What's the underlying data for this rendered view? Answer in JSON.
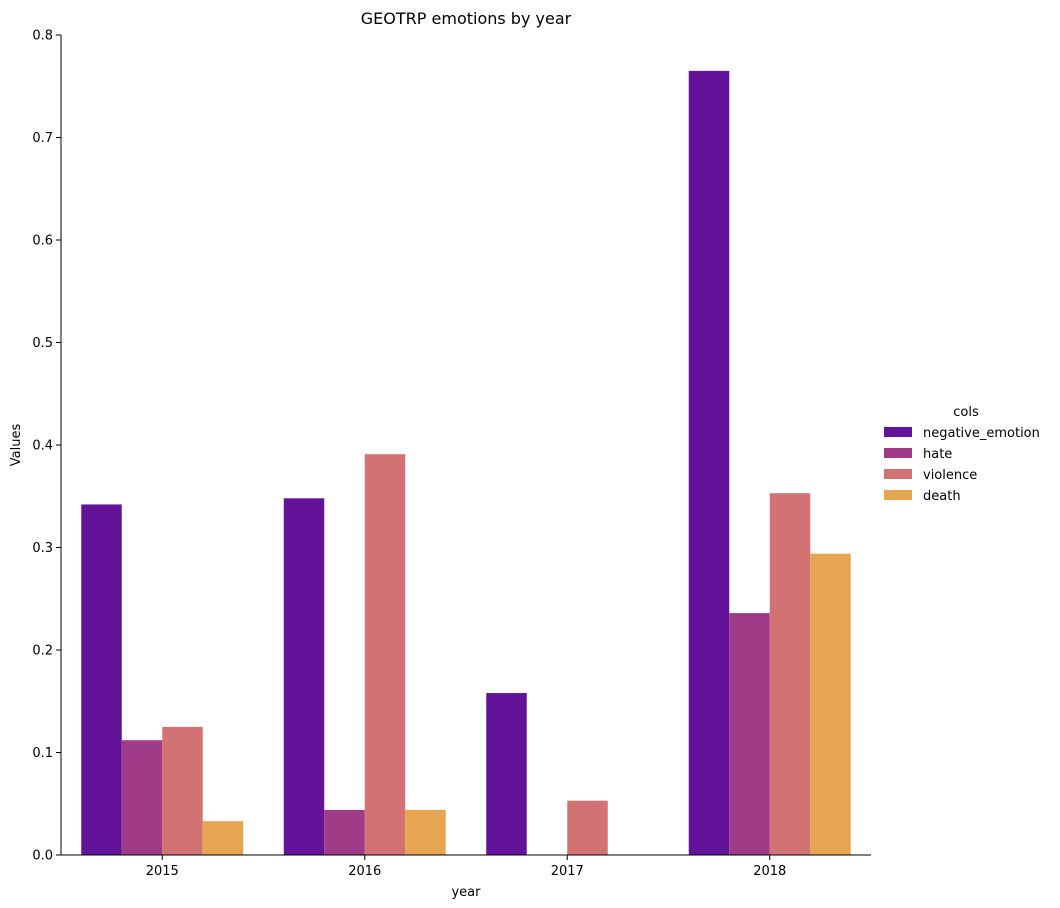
{
  "chart_data": {
    "type": "bar",
    "title": "GEOTRP emotions by year",
    "xlabel": "year",
    "ylabel": "Values",
    "categories": [
      "2015",
      "2016",
      "2017",
      "2018"
    ],
    "ylim": [
      0,
      0.8
    ],
    "yticks": [
      "0.0",
      "0.1",
      "0.2",
      "0.3",
      "0.4",
      "0.5",
      "0.6",
      "0.7",
      "0.8"
    ],
    "grid": false,
    "legend": {
      "title": "cols",
      "placement": "right"
    },
    "series": [
      {
        "name": "negative_emotion",
        "color": "#63139a",
        "values": [
          0.342,
          0.348,
          0.158,
          0.765
        ]
      },
      {
        "name": "hate",
        "color": "#a03b88",
        "values": [
          0.112,
          0.044,
          0.0,
          0.236
        ]
      },
      {
        "name": "violence",
        "color": "#d27272",
        "values": [
          0.125,
          0.391,
          0.053,
          0.353
        ]
      },
      {
        "name": "death",
        "color": "#e6a550",
        "values": [
          0.033,
          0.044,
          0.0,
          0.294
        ]
      }
    ]
  }
}
